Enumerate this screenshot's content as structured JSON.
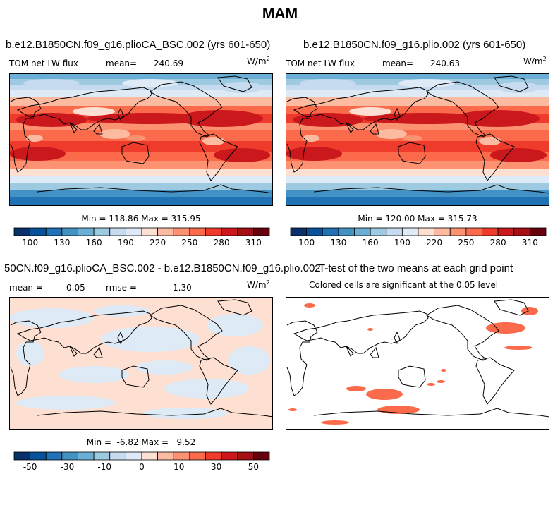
{
  "title": "MAM",
  "panels": [
    {
      "title": "b.e12.B1850CN.f09_g16.plioCA_BSC.002 (yrs 601-650)",
      "field": "TOM net LW flux",
      "stat_label": "mean=",
      "stat_value": "240.69",
      "units": "W/m",
      "units_exp": "2",
      "minmax": "Min = 118.86 Max = 315.95"
    },
    {
      "title": "b.e12.B1850CN.f09_g16.plio.002 (yrs 601-650)",
      "field": "TOM net LW flux",
      "stat_label": "mean=",
      "stat_value": "240.63",
      "units": "W/m",
      "units_exp": "2",
      "minmax": "Min = 120.00 Max = 315.73"
    },
    {
      "title": "50CN.f09_g16.plioCA_BSC.002 - b.e12.B1850CN.f09_g16.plio.002",
      "mean_label": "mean =",
      "mean_value": "0.05",
      "rmse_label": "rmse =",
      "rmse_value": "1.30",
      "units": "W/m",
      "units_exp": "2",
      "minmax": "Min =  -6.82 Max =   9.52"
    },
    {
      "title": "T-test of the two means at each grid point",
      "subtitle": "Colored cells are significant at the 0.05 level"
    }
  ],
  "colorbars": [
    {
      "colors": [
        "#08306b",
        "#08519c",
        "#2171b5",
        "#4292c6",
        "#6baed6",
        "#9ecae1",
        "#c6dbef",
        "#deebf7",
        "#fee0d2",
        "#fcbba1",
        "#fc9272",
        "#fb6a4a",
        "#ef3b2c",
        "#cb181d",
        "#a50f15",
        "#67000d"
      ],
      "labels": [
        "100",
        "130",
        "160",
        "190",
        "220",
        "250",
        "280",
        "310"
      ]
    },
    {
      "colors": [
        "#08306b",
        "#08519c",
        "#2171b5",
        "#4292c6",
        "#6baed6",
        "#9ecae1",
        "#c6dbef",
        "#deebf7",
        "#fee0d2",
        "#fcbba1",
        "#fc9272",
        "#fb6a4a",
        "#ef3b2c",
        "#cb181d",
        "#a50f15",
        "#67000d"
      ],
      "labels": [
        "100",
        "130",
        "160",
        "190",
        "220",
        "250",
        "280",
        "310"
      ]
    },
    {
      "colors": [
        "#08306b",
        "#08519c",
        "#2171b5",
        "#4292c6",
        "#6baed6",
        "#9ecae1",
        "#c6dbef",
        "#deebf7",
        "#fee0d2",
        "#fcbba1",
        "#fc9272",
        "#fb6a4a",
        "#ef3b2c",
        "#cb181d",
        "#a50f15",
        "#67000d"
      ],
      "labels": [
        "-50",
        "-30",
        "-10",
        "0",
        "10",
        "30",
        "50"
      ]
    }
  ],
  "colors": {
    "ttest_fill": "#fb6a4a",
    "diff_pos": "#fee0d2",
    "diff_neg": "#deebf7"
  }
}
